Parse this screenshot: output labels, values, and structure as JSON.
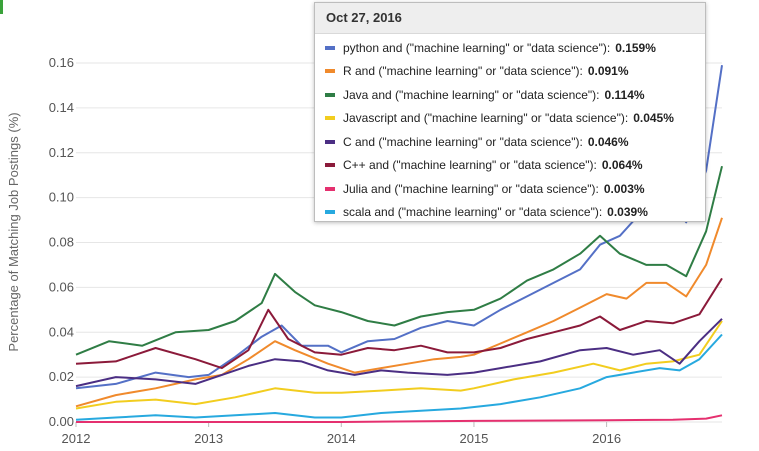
{
  "chart_data": {
    "type": "line",
    "title": "",
    "xlabel": "",
    "ylabel": "Percentage of Matching Job Postings (%)",
    "xlim": [
      2012.0,
      2016.87
    ],
    "ylim": [
      0,
      0.16
    ],
    "x_ticks": [
      2012,
      2013,
      2014,
      2015,
      2016
    ],
    "x_tick_labels": [
      "2012",
      "2013",
      "2014",
      "2015",
      "2016"
    ],
    "y_ticks": [
      0,
      0.02,
      0.04,
      0.06,
      0.08,
      0.1,
      0.12,
      0.14,
      0.16
    ],
    "y_tick_labels": [
      "0.00",
      "0.02",
      "0.04",
      "0.06",
      "0.08",
      "0.10",
      "0.12",
      "0.14",
      "0.16"
    ],
    "grid": true,
    "series": [
      {
        "name": "python",
        "color": "#5470c6",
        "x": [
          2012.0,
          2012.3,
          2012.6,
          2012.85,
          2013.0,
          2013.2,
          2013.4,
          2013.55,
          2013.7,
          2013.9,
          2014.0,
          2014.2,
          2014.4,
          2014.6,
          2014.8,
          2015.0,
          2015.2,
          2015.4,
          2015.6,
          2015.8,
          2015.95,
          2016.1,
          2016.3,
          2016.45,
          2016.6,
          2016.75,
          2016.87
        ],
        "y": [
          0.015,
          0.017,
          0.022,
          0.02,
          0.021,
          0.029,
          0.038,
          0.043,
          0.034,
          0.034,
          0.031,
          0.036,
          0.037,
          0.042,
          0.045,
          0.043,
          0.05,
          0.056,
          0.062,
          0.068,
          0.079,
          0.083,
          0.096,
          0.1,
          0.089,
          0.112,
          0.159
        ]
      },
      {
        "name": "R",
        "color": "#f08a2c",
        "x": [
          2012.0,
          2012.3,
          2012.6,
          2012.9,
          2013.1,
          2013.3,
          2013.5,
          2013.65,
          2013.9,
          2014.1,
          2014.3,
          2014.5,
          2014.7,
          2014.9,
          2015.0,
          2015.2,
          2015.4,
          2015.6,
          2015.8,
          2016.0,
          2016.15,
          2016.3,
          2016.45,
          2016.6,
          2016.75,
          2016.87
        ],
        "y": [
          0.007,
          0.012,
          0.015,
          0.019,
          0.021,
          0.028,
          0.036,
          0.032,
          0.026,
          0.022,
          0.024,
          0.026,
          0.028,
          0.029,
          0.03,
          0.035,
          0.04,
          0.045,
          0.051,
          0.057,
          0.055,
          0.062,
          0.062,
          0.056,
          0.07,
          0.091
        ]
      },
      {
        "name": "Java",
        "color": "#2f7d45",
        "x": [
          2012.0,
          2012.25,
          2012.5,
          2012.75,
          2013.0,
          2013.2,
          2013.4,
          2013.5,
          2013.65,
          2013.8,
          2014.0,
          2014.2,
          2014.4,
          2014.6,
          2014.8,
          2015.0,
          2015.2,
          2015.4,
          2015.6,
          2015.8,
          2015.95,
          2016.1,
          2016.3,
          2016.45,
          2016.6,
          2016.75,
          2016.87
        ],
        "y": [
          0.03,
          0.036,
          0.034,
          0.04,
          0.041,
          0.045,
          0.053,
          0.066,
          0.058,
          0.052,
          0.049,
          0.045,
          0.043,
          0.047,
          0.049,
          0.05,
          0.055,
          0.063,
          0.068,
          0.075,
          0.083,
          0.075,
          0.07,
          0.07,
          0.065,
          0.085,
          0.114
        ]
      },
      {
        "name": "Javascript",
        "color": "#f2cd1f",
        "x": [
          2012.0,
          2012.3,
          2012.6,
          2012.9,
          2013.2,
          2013.5,
          2013.8,
          2014.0,
          2014.3,
          2014.6,
          2014.9,
          2015.0,
          2015.3,
          2015.6,
          2015.9,
          2016.1,
          2016.3,
          2016.5,
          2016.7,
          2016.87
        ],
        "y": [
          0.006,
          0.009,
          0.01,
          0.008,
          0.011,
          0.015,
          0.013,
          0.013,
          0.014,
          0.015,
          0.014,
          0.015,
          0.019,
          0.022,
          0.026,
          0.023,
          0.026,
          0.027,
          0.03,
          0.045
        ]
      },
      {
        "name": "C",
        "color": "#4b2e83",
        "x": [
          2012.0,
          2012.3,
          2012.6,
          2012.9,
          2013.1,
          2013.3,
          2013.5,
          2013.7,
          2013.9,
          2014.1,
          2014.3,
          2014.5,
          2014.8,
          2015.0,
          2015.2,
          2015.5,
          2015.8,
          2016.0,
          2016.2,
          2016.4,
          2016.55,
          2016.7,
          2016.87
        ],
        "y": [
          0.016,
          0.02,
          0.019,
          0.017,
          0.021,
          0.025,
          0.028,
          0.027,
          0.023,
          0.021,
          0.023,
          0.022,
          0.021,
          0.022,
          0.024,
          0.027,
          0.032,
          0.033,
          0.03,
          0.032,
          0.026,
          0.036,
          0.046
        ]
      },
      {
        "name": "C++",
        "color": "#8b1a3a",
        "x": [
          2012.0,
          2012.3,
          2012.6,
          2012.9,
          2013.1,
          2013.3,
          2013.45,
          2013.6,
          2013.8,
          2014.0,
          2014.2,
          2014.4,
          2014.6,
          2014.8,
          2015.0,
          2015.2,
          2015.4,
          2015.6,
          2015.8,
          2015.95,
          2016.1,
          2016.3,
          2016.5,
          2016.7,
          2016.87
        ],
        "y": [
          0.026,
          0.027,
          0.033,
          0.028,
          0.024,
          0.032,
          0.05,
          0.037,
          0.031,
          0.03,
          0.033,
          0.032,
          0.034,
          0.031,
          0.031,
          0.033,
          0.037,
          0.04,
          0.043,
          0.047,
          0.041,
          0.045,
          0.044,
          0.048,
          0.064
        ]
      },
      {
        "name": "Julia",
        "color": "#e5306f",
        "x": [
          2012.0,
          2013.0,
          2014.0,
          2015.0,
          2016.0,
          2016.5,
          2016.75,
          2016.87
        ],
        "y": [
          0.0,
          0.0,
          0.0,
          0.0005,
          0.0008,
          0.001,
          0.0015,
          0.003
        ]
      },
      {
        "name": "scala",
        "color": "#27a9df",
        "x": [
          2012.0,
          2012.3,
          2012.6,
          2012.9,
          2013.2,
          2013.5,
          2013.8,
          2014.0,
          2014.3,
          2014.6,
          2014.9,
          2015.2,
          2015.5,
          2015.8,
          2016.0,
          2016.2,
          2016.4,
          2016.55,
          2016.7,
          2016.87
        ],
        "y": [
          0.001,
          0.002,
          0.003,
          0.002,
          0.003,
          0.004,
          0.002,
          0.002,
          0.004,
          0.005,
          0.006,
          0.008,
          0.011,
          0.015,
          0.02,
          0.022,
          0.024,
          0.023,
          0.028,
          0.039
        ]
      }
    ]
  },
  "tooltip": {
    "date": "Oct 27, 2016",
    "rows": [
      {
        "label": "python and (\"machine learning\" or \"data science\"):",
        "value": "0.159%",
        "color": "#5470c6"
      },
      {
        "label": "R and (\"machine learning\" or \"data science\"):",
        "value": "0.091%",
        "color": "#f08a2c"
      },
      {
        "label": "Java and (\"machine learning\" or \"data science\"):",
        "value": "0.114%",
        "color": "#2f7d45"
      },
      {
        "label": "Javascript and (\"machine learning\" or \"data science\"):",
        "value": "0.045%",
        "color": "#f2cd1f"
      },
      {
        "label": "C and (\"machine learning\" or \"data science\"):",
        "value": "0.046%",
        "color": "#4b2e83"
      },
      {
        "label": "C++ and (\"machine learning\" or \"data science\"):",
        "value": "0.064%",
        "color": "#8b1a3a"
      },
      {
        "label": "Julia and (\"machine learning\" or \"data science\"):",
        "value": "0.003%",
        "color": "#e5306f"
      },
      {
        "label": "scala and (\"machine learning\" or \"data science\"):",
        "value": "0.039%",
        "color": "#27a9df"
      }
    ]
  }
}
